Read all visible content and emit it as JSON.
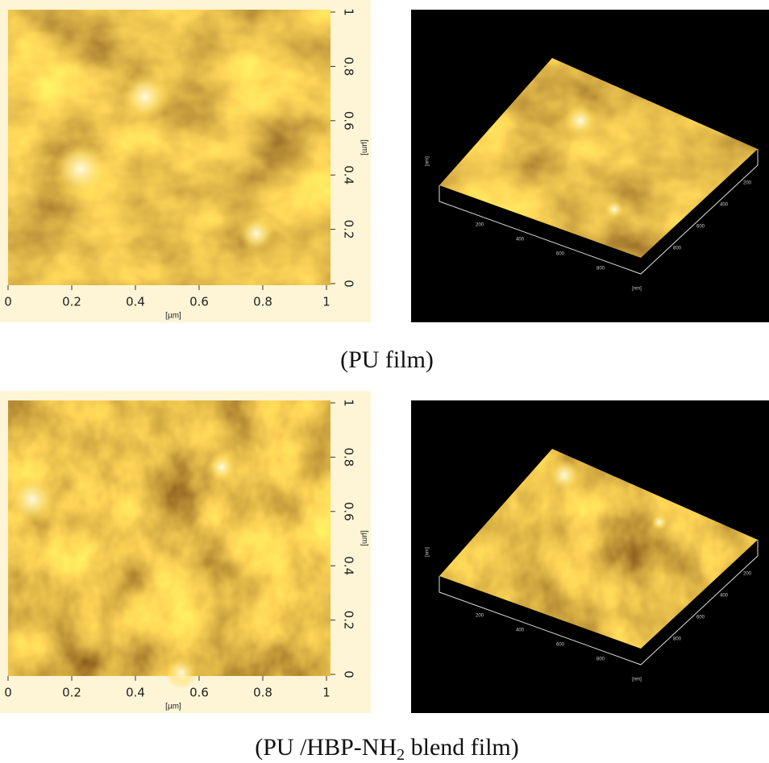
{
  "panels": [
    {
      "scan2d": {
        "xlabel": "[µm]",
        "ylabel": "[µm]",
        "xlim": [
          0,
          1
        ],
        "ylim": [
          0,
          1
        ],
        "xticks": [
          0,
          0.2,
          0.4,
          0.6,
          0.8,
          1
        ],
        "yticks": [
          0,
          0.2,
          0.4,
          0.6,
          0.8,
          1
        ]
      },
      "scan3d": {
        "xticks": [
          200,
          400,
          600,
          800
        ],
        "yticks": [
          200,
          400,
          600,
          800
        ],
        "unit": "[nm]"
      },
      "caption": {
        "text": "(PU film)"
      }
    },
    {
      "scan2d": {
        "xlabel": "[µm]",
        "ylabel": "[µm]",
        "xlim": [
          0,
          1
        ],
        "ylim": [
          0,
          1
        ],
        "xticks": [
          0,
          0.2,
          0.4,
          0.6,
          0.8,
          1
        ],
        "yticks": [
          0,
          0.2,
          0.4,
          0.6,
          0.8,
          1
        ]
      },
      "scan3d": {
        "xticks": [
          200,
          400,
          600,
          800
        ],
        "yticks": [
          200,
          400,
          600,
          800
        ],
        "unit": "[nm]"
      },
      "caption": {
        "text": "(PU /HBP-NH",
        "sub": "2",
        "after": " blend film)"
      }
    }
  ]
}
